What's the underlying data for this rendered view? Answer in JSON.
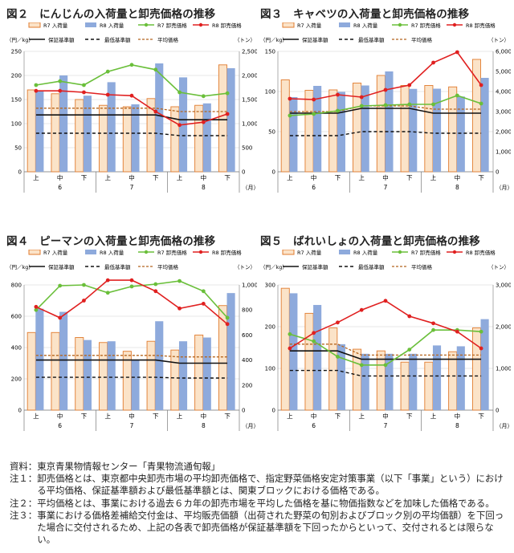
{
  "colors": {
    "r7_bar_fill": "#fbe3c8",
    "r7_bar_stroke": "#e07b2e",
    "r8_bar": "#8eaadc",
    "r7_price": "#6abf3a",
    "r8_price": "#e02020",
    "standard": "#111111",
    "minimum": "#111111",
    "average": "#b5651d",
    "grid": "#d0d0d0"
  },
  "legend": {
    "r7_volume": "R7 入荷量",
    "r8_volume": "R8 入荷量",
    "r7_price": "R7 卸売価格",
    "r8_price": "R8 卸売価格",
    "standard": "保証基準額",
    "minimum": "最低基準額",
    "average": "平均価格"
  },
  "chart_data": [
    {
      "type": "bar",
      "title": "図２　にんじんの入荷量と卸売価格の推移",
      "ylabel": "（円／kg）",
      "y2label": "（トン）",
      "xunit": "（月）",
      "categories": [
        "上",
        "中",
        "下",
        "上",
        "中",
        "下",
        "上",
        "中",
        "下"
      ],
      "months": [
        "6",
        "7",
        "8"
      ],
      "ylim": [
        0,
        250
      ],
      "yticks": [
        0,
        50,
        100,
        150,
        200,
        250
      ],
      "y2lim": [
        0,
        2500
      ],
      "y2ticks": [
        "0",
        "500",
        "1,000",
        "1,500",
        "2,000",
        "2,500"
      ],
      "volume_r7": [
        1700,
        1620,
        1500,
        1380,
        1350,
        1520,
        1350,
        1380,
        2220
      ],
      "volume_r8": [
        1680,
        2000,
        1580,
        1860,
        1400,
        2250,
        1960,
        1420,
        2150
      ],
      "price_r7": [
        180,
        188,
        180,
        208,
        222,
        212,
        165,
        157,
        163
      ],
      "price_r8": [
        168,
        168,
        165,
        160,
        158,
        125,
        97,
        103,
        120
      ],
      "standard": [
        118,
        118,
        118,
        118,
        118,
        118,
        108,
        108,
        108
      ],
      "minimum": [
        80,
        80,
        80,
        80,
        80,
        80,
        75,
        75,
        75
      ],
      "average": [
        132,
        132,
        132,
        132,
        132,
        132,
        125,
        125,
        125
      ],
      "legend": "top",
      "grid": true
    },
    {
      "type": "bar",
      "title": "図３　キャベツの入荷量と卸売価格の推移",
      "ylabel": "（円／kg）",
      "y2label": "（トン）",
      "xunit": "（月）",
      "categories": [
        "上",
        "中",
        "下",
        "上",
        "中",
        "下",
        "上",
        "中",
        "下"
      ],
      "months": [
        "6",
        "7",
        "8"
      ],
      "ylim": [
        0,
        150
      ],
      "yticks": [
        0,
        50,
        100,
        150
      ],
      "y2lim": [
        0,
        6000
      ],
      "y2ticks": [
        "0",
        "1,000",
        "2,000",
        "3,000",
        "4,000",
        "5,000",
        "6,000"
      ],
      "volume_r7": [
        4580,
        4060,
        4080,
        4420,
        4800,
        4300,
        4300,
        4230,
        5600
      ],
      "volume_r8": [
        3720,
        4280,
        3980,
        4300,
        5000,
        4130,
        4140,
        3750,
        4680
      ],
      "price_r7": [
        70,
        72,
        76,
        82,
        83,
        84,
        84,
        95,
        85
      ],
      "price_r8": [
        91,
        90,
        96,
        93,
        102,
        108,
        136,
        149,
        108
      ],
      "standard": [
        73,
        73,
        73,
        79,
        79,
        79,
        73,
        73,
        73
      ],
      "minimum": [
        45,
        45,
        45,
        50,
        50,
        50,
        48,
        48,
        48
      ],
      "average": [
        75,
        75,
        75,
        82,
        82,
        82,
        78,
        78,
        78
      ],
      "legend": "top",
      "grid": true
    },
    {
      "type": "bar",
      "title": "図４　ピーマンの入荷量と卸売価格の推移",
      "ylabel": "（円／kg）",
      "y2label": "（トン）",
      "xunit": "（月）",
      "categories": [
        "上",
        "中",
        "下",
        "上",
        "中",
        "下",
        "上",
        "中",
        "下"
      ],
      "months": [
        "6",
        "7",
        "8"
      ],
      "ylim": [
        0,
        800
      ],
      "yticks": [
        0,
        200,
        400,
        600,
        800
      ],
      "y2lim": [
        0,
        1000
      ],
      "y2ticks": [
        "0",
        "200",
        "400",
        "600",
        "800",
        "1,000"
      ],
      "volume_r7": [
        620,
        620,
        580,
        540,
        470,
        550,
        480,
        600,
        835
      ],
      "volume_r8": [
        810,
        785,
        560,
        550,
        400,
        710,
        550,
        580,
        935
      ],
      "price_r7": [
        640,
        795,
        800,
        750,
        790,
        805,
        825,
        760,
        590
      ],
      "price_r8": [
        660,
        590,
        700,
        830,
        830,
        760,
        650,
        680,
        550
      ],
      "standard": [
        320,
        320,
        320,
        320,
        320,
        320,
        300,
        300,
        300
      ],
      "minimum": [
        210,
        210,
        210,
        210,
        210,
        210,
        205,
        205,
        205
      ],
      "average": [
        350,
        350,
        350,
        350,
        350,
        350,
        340,
        340,
        340
      ],
      "legend": "top",
      "grid": true
    },
    {
      "type": "bar",
      "title": "図５　ばれいしょの入荷量と卸売価格の推移",
      "ylabel": "（円／kg）",
      "y2label": "（トン）",
      "xunit": "（月）",
      "categories": [
        "上",
        "中",
        "下",
        "上",
        "中",
        "下",
        "上",
        "中",
        "下"
      ],
      "months": [
        "6",
        "7",
        "8"
      ],
      "ylim": [
        0,
        300
      ],
      "yticks": [
        0,
        100,
        200,
        300
      ],
      "y2lim": [
        0,
        3000
      ],
      "y2ticks": [
        "0",
        "1,000",
        "2,000",
        "3,000"
      ],
      "volume_r7": [
        2920,
        2320,
        1970,
        1460,
        1420,
        1150,
        1150,
        1400,
        1970
      ],
      "volume_r8": [
        2800,
        2520,
        1580,
        1350,
        1350,
        1350,
        1550,
        1530,
        2180
      ],
      "price_r7": [
        182,
        165,
        128,
        108,
        108,
        145,
        192,
        192,
        188
      ],
      "price_r8": [
        148,
        185,
        210,
        240,
        262,
        225,
        208,
        188,
        148
      ],
      "standard": [
        142,
        142,
        142,
        122,
        122,
        122,
        122,
        122,
        122
      ],
      "minimum": [
        95,
        95,
        95,
        82,
        82,
        82,
        82,
        82,
        82
      ],
      "average": [
        158,
        158,
        158,
        132,
        132,
        132,
        132,
        132,
        132
      ],
      "legend": "top",
      "grid": true
    }
  ],
  "notes": [
    {
      "label": "資料：",
      "text": "東京青果物情報センター「青果物流通旬報」"
    },
    {
      "label": "注１：",
      "text": "卸売価格とは、東京都中央卸売市場の平均卸売価格で、指定野菜価格安定対策事業（以下「事業」という）における平均価格、保証基準額および最低基準額とは、関東ブロックにおける価格である。"
    },
    {
      "label": "注２：",
      "text": "平均価格とは、事業における過去６カ年の卸売市場を平均した価格を基に物価指数などを加味した価格である。"
    },
    {
      "label": "注３：",
      "text": "事業における価格差補給交付金は、平均販売価額（出荷された野菜の旬別およびブロック別の平均価額）を下回った場合に交付されるため、上記の各表で卸売価格が保証基準額を下回ったからといって、交付されるとは限らない。"
    }
  ]
}
